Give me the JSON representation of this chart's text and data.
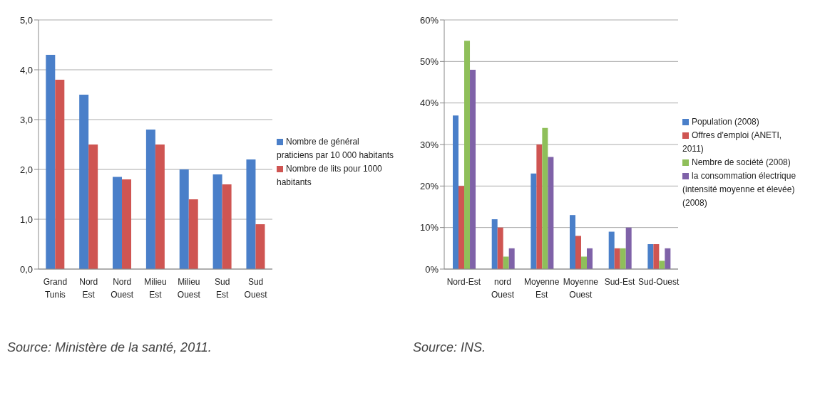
{
  "chart_data": [
    {
      "type": "bar",
      "categories": [
        "Grand Tunis",
        "Nord Est",
        "Nord Ouest",
        "Milieu Est",
        "Milieu Ouest",
        "Sud Est",
        "Sud Ouest"
      ],
      "series": [
        {
          "name": "Nombre de général praticiens par 10 000 habitants",
          "color": "#4a7fc9",
          "values": [
            4.3,
            3.5,
            1.85,
            2.8,
            2.0,
            1.9,
            2.2
          ]
        },
        {
          "name": "Nombre de lits pour 1000 habitants",
          "color": "#cf5552",
          "values": [
            3.8,
            2.5,
            1.8,
            2.5,
            1.4,
            1.7,
            0.9
          ]
        }
      ],
      "ylim": [
        0,
        5
      ],
      "yticks": [
        {
          "value": 0,
          "label": "0,0"
        },
        {
          "value": 1,
          "label": "1,0"
        },
        {
          "value": 2,
          "label": "2,0"
        },
        {
          "value": 3,
          "label": "3,0"
        },
        {
          "value": 4,
          "label": "4,0"
        },
        {
          "value": 5,
          "label": "5,0"
        }
      ],
      "grid": "y",
      "legend": "right",
      "annotations": [
        "Source: Ministère de la santé, 2011."
      ]
    },
    {
      "type": "bar",
      "categories": [
        "Nord-Est",
        "nord Ouest",
        "Moyenne Est",
        "Moyenne Ouest",
        "Sud-Est",
        "Sud-Ouest"
      ],
      "series": [
        {
          "name": "Population (2008)",
          "color": "#4a7fc9",
          "values": [
            37,
            12,
            23,
            13,
            9,
            6
          ]
        },
        {
          "name": "Offres d'emploi (ANETI, 2011)",
          "color": "#cf5552",
          "values": [
            20,
            10,
            30,
            8,
            5,
            6
          ]
        },
        {
          "name": "Nembre de société (2008)",
          "color": "#8fbf5a",
          "values": [
            55,
            3,
            34,
            3,
            5,
            2
          ]
        },
        {
          "name": "la consommation électrique (intensité moyenne et élevée) (2008)",
          "color": "#7f62a8",
          "values": [
            48,
            5,
            27,
            5,
            10,
            5
          ]
        }
      ],
      "ylim": [
        0,
        60
      ],
      "yticks": [
        {
          "value": 0,
          "label": "0%"
        },
        {
          "value": 10,
          "label": "10%"
        },
        {
          "value": 20,
          "label": "20%"
        },
        {
          "value": 30,
          "label": "30%"
        },
        {
          "value": 40,
          "label": "40%"
        },
        {
          "value": 50,
          "label": "50%"
        },
        {
          "value": 60,
          "label": "60%"
        }
      ],
      "grid": "y",
      "legend": "right",
      "annotations": [
        "Source: INS."
      ]
    }
  ]
}
